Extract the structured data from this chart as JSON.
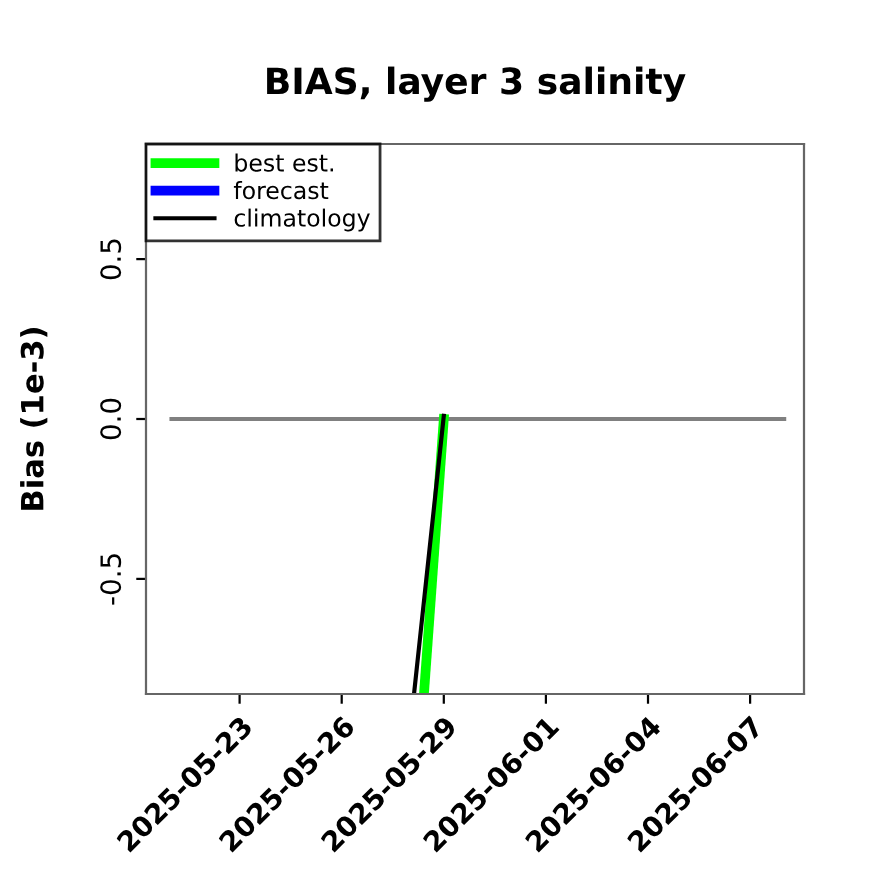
{
  "chart_data": {
    "type": "line",
    "title": "BIAS, layer 3 salinity",
    "ylabel": "Bias (1e-3)",
    "series": [
      {
        "color": "#808080",
        "x": [
          "2025-05-21",
          "2025-06-08"
        ],
        "values": [
          0.0,
          0.0
        ]
      },
      {
        "name": "best est.",
        "color": "#00ff00",
        "x": [
          "2025-05-28T10:00",
          "2025-05-29"
        ],
        "values": [
          -0.86,
          0.0
        ]
      },
      {
        "name": "forecast",
        "color": "#0000ff"
      },
      {
        "name": "climatology",
        "color": "#000000",
        "x": [
          "2025-05-28T03:00",
          "2025-05-29"
        ],
        "values": [
          -0.86,
          0.01
        ]
      }
    ],
    "xlim": [
      "2025-05-20T06:00",
      "2025-06-08T14:00"
    ],
    "xticks": [
      "2025-05-23",
      "2025-05-26",
      "2025-05-29",
      "2025-06-01",
      "2025-06-04",
      "2025-06-07"
    ],
    "ylim": [
      -0.86,
      0.86
    ],
    "yticks": [
      -0.5,
      {
        "value": 0,
        "label": "0.0"
      },
      0.5
    ],
    "grid": false,
    "legend": "top left",
    "line_style": "solid",
    "marker": "none"
  }
}
